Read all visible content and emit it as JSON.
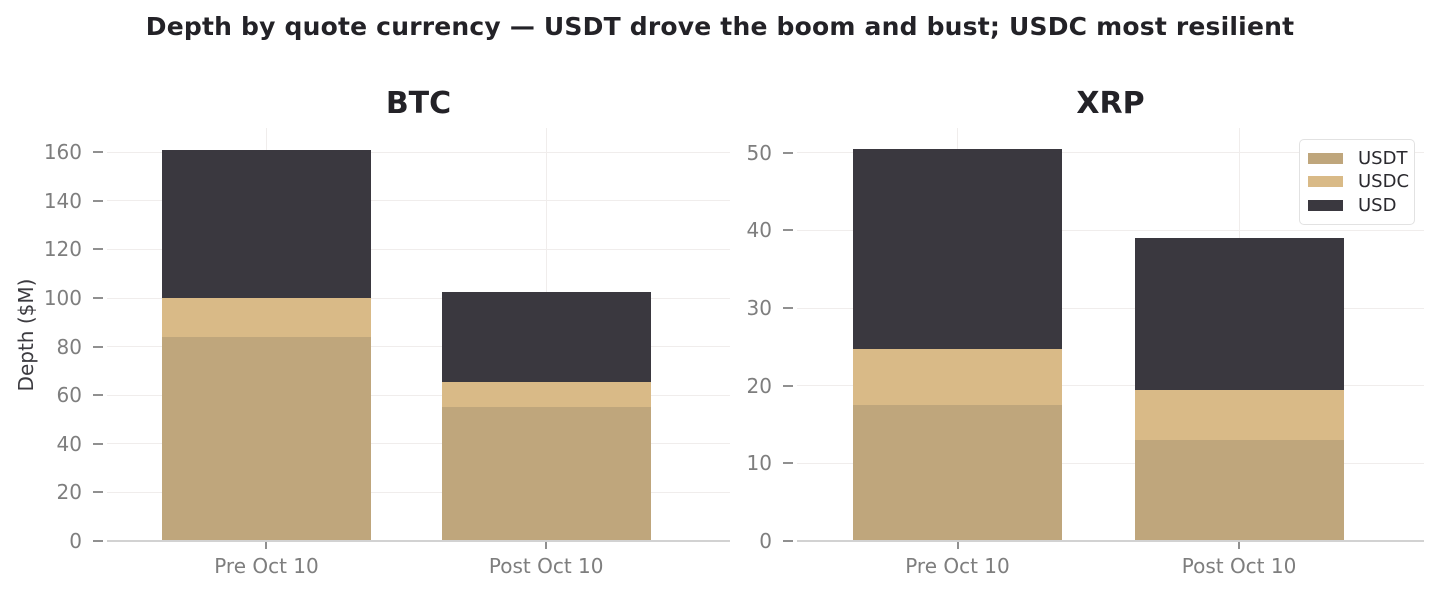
{
  "figure": {
    "title": "Depth by quote currency — USDT drove the boom and bust; USDC most resilient",
    "ylabel": "Depth ($M)"
  },
  "legend": {
    "position": "upper right",
    "entries": [
      {
        "label": "USDT"
      },
      {
        "label": "USDC"
      },
      {
        "label": "USD"
      }
    ]
  },
  "colors": {
    "usdt": "#bfa67c",
    "usdc": "#d9ba87",
    "usd": "#3a383f",
    "grid": "#f0edec",
    "axis_line": "#d2d2d2",
    "tick_mark": "#909090",
    "tick_label": "#7e7e7e",
    "title_text": "#232227"
  },
  "chart_data": [
    {
      "type": "bar",
      "stacked": true,
      "title": "BTC",
      "categories": [
        "Pre Oct 10",
        "Post Oct 10"
      ],
      "series": [
        {
          "name": "USDT",
          "values": [
            84,
            55
          ]
        },
        {
          "name": "USDC",
          "values": [
            16,
            10.5
          ]
        },
        {
          "name": "USD",
          "values": [
            61,
            37
          ]
        }
      ],
      "stack_totals": [
        161,
        102.5
      ],
      "ylabel": "Depth ($M)",
      "yticks": [
        0,
        20,
        40,
        60,
        80,
        100,
        120,
        140,
        160
      ],
      "ylim": [
        0,
        170
      ],
      "grid": true,
      "legend": false
    },
    {
      "type": "bar",
      "stacked": true,
      "title": "XRP",
      "categories": [
        "Pre Oct 10",
        "Post Oct 10"
      ],
      "series": [
        {
          "name": "USDT",
          "values": [
            17.5,
            13
          ]
        },
        {
          "name": "USDC",
          "values": [
            7.2,
            6.5
          ]
        },
        {
          "name": "USD",
          "values": [
            25.8,
            19.5
          ]
        }
      ],
      "stack_totals": [
        50.5,
        39
      ],
      "yticks": [
        0,
        10,
        20,
        30,
        40,
        50
      ],
      "ylim": [
        0,
        53.2
      ],
      "grid": true,
      "legend": true
    }
  ]
}
